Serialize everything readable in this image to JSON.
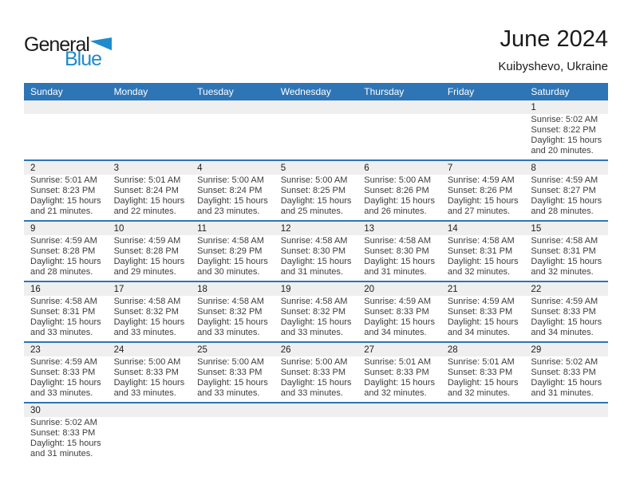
{
  "logo": {
    "part1": "General",
    "part2": "Blue"
  },
  "header": {
    "title": "June 2024",
    "subtitle": "Kuibyshevo, Ukraine"
  },
  "colors": {
    "header_blue": "#2E75B6",
    "separator_blue": "#2E75B6",
    "day_band_gray": "#EFEFEF",
    "logo_blue": "#1E8BCB",
    "detail_text": "#3C3C3C"
  },
  "weekdays": [
    "Sunday",
    "Monday",
    "Tuesday",
    "Wednesday",
    "Thursday",
    "Friday",
    "Saturday"
  ],
  "weeks": [
    [
      {
        "day": ""
      },
      {
        "day": ""
      },
      {
        "day": ""
      },
      {
        "day": ""
      },
      {
        "day": ""
      },
      {
        "day": ""
      },
      {
        "day": "1",
        "sunrise": "Sunrise: 5:02 AM",
        "sunset": "Sunset: 8:22 PM",
        "daylight1": "Daylight: 15 hours",
        "daylight2": "and 20 minutes."
      }
    ],
    [
      {
        "day": "2",
        "sunrise": "Sunrise: 5:01 AM",
        "sunset": "Sunset: 8:23 PM",
        "daylight1": "Daylight: 15 hours",
        "daylight2": "and 21 minutes."
      },
      {
        "day": "3",
        "sunrise": "Sunrise: 5:01 AM",
        "sunset": "Sunset: 8:24 PM",
        "daylight1": "Daylight: 15 hours",
        "daylight2": "and 22 minutes."
      },
      {
        "day": "4",
        "sunrise": "Sunrise: 5:00 AM",
        "sunset": "Sunset: 8:24 PM",
        "daylight1": "Daylight: 15 hours",
        "daylight2": "and 23 minutes."
      },
      {
        "day": "5",
        "sunrise": "Sunrise: 5:00 AM",
        "sunset": "Sunset: 8:25 PM",
        "daylight1": "Daylight: 15 hours",
        "daylight2": "and 25 minutes."
      },
      {
        "day": "6",
        "sunrise": "Sunrise: 5:00 AM",
        "sunset": "Sunset: 8:26 PM",
        "daylight1": "Daylight: 15 hours",
        "daylight2": "and 26 minutes."
      },
      {
        "day": "7",
        "sunrise": "Sunrise: 4:59 AM",
        "sunset": "Sunset: 8:26 PM",
        "daylight1": "Daylight: 15 hours",
        "daylight2": "and 27 minutes."
      },
      {
        "day": "8",
        "sunrise": "Sunrise: 4:59 AM",
        "sunset": "Sunset: 8:27 PM",
        "daylight1": "Daylight: 15 hours",
        "daylight2": "and 28 minutes."
      }
    ],
    [
      {
        "day": "9",
        "sunrise": "Sunrise: 4:59 AM",
        "sunset": "Sunset: 8:28 PM",
        "daylight1": "Daylight: 15 hours",
        "daylight2": "and 28 minutes."
      },
      {
        "day": "10",
        "sunrise": "Sunrise: 4:59 AM",
        "sunset": "Sunset: 8:28 PM",
        "daylight1": "Daylight: 15 hours",
        "daylight2": "and 29 minutes."
      },
      {
        "day": "11",
        "sunrise": "Sunrise: 4:58 AM",
        "sunset": "Sunset: 8:29 PM",
        "daylight1": "Daylight: 15 hours",
        "daylight2": "and 30 minutes."
      },
      {
        "day": "12",
        "sunrise": "Sunrise: 4:58 AM",
        "sunset": "Sunset: 8:30 PM",
        "daylight1": "Daylight: 15 hours",
        "daylight2": "and 31 minutes."
      },
      {
        "day": "13",
        "sunrise": "Sunrise: 4:58 AM",
        "sunset": "Sunset: 8:30 PM",
        "daylight1": "Daylight: 15 hours",
        "daylight2": "and 31 minutes."
      },
      {
        "day": "14",
        "sunrise": "Sunrise: 4:58 AM",
        "sunset": "Sunset: 8:31 PM",
        "daylight1": "Daylight: 15 hours",
        "daylight2": "and 32 minutes."
      },
      {
        "day": "15",
        "sunrise": "Sunrise: 4:58 AM",
        "sunset": "Sunset: 8:31 PM",
        "daylight1": "Daylight: 15 hours",
        "daylight2": "and 32 minutes."
      }
    ],
    [
      {
        "day": "16",
        "sunrise": "Sunrise: 4:58 AM",
        "sunset": "Sunset: 8:31 PM",
        "daylight1": "Daylight: 15 hours",
        "daylight2": "and 33 minutes."
      },
      {
        "day": "17",
        "sunrise": "Sunrise: 4:58 AM",
        "sunset": "Sunset: 8:32 PM",
        "daylight1": "Daylight: 15 hours",
        "daylight2": "and 33 minutes."
      },
      {
        "day": "18",
        "sunrise": "Sunrise: 4:58 AM",
        "sunset": "Sunset: 8:32 PM",
        "daylight1": "Daylight: 15 hours",
        "daylight2": "and 33 minutes."
      },
      {
        "day": "19",
        "sunrise": "Sunrise: 4:58 AM",
        "sunset": "Sunset: 8:32 PM",
        "daylight1": "Daylight: 15 hours",
        "daylight2": "and 33 minutes."
      },
      {
        "day": "20",
        "sunrise": "Sunrise: 4:59 AM",
        "sunset": "Sunset: 8:33 PM",
        "daylight1": "Daylight: 15 hours",
        "daylight2": "and 34 minutes."
      },
      {
        "day": "21",
        "sunrise": "Sunrise: 4:59 AM",
        "sunset": "Sunset: 8:33 PM",
        "daylight1": "Daylight: 15 hours",
        "daylight2": "and 34 minutes."
      },
      {
        "day": "22",
        "sunrise": "Sunrise: 4:59 AM",
        "sunset": "Sunset: 8:33 PM",
        "daylight1": "Daylight: 15 hours",
        "daylight2": "and 34 minutes."
      }
    ],
    [
      {
        "day": "23",
        "sunrise": "Sunrise: 4:59 AM",
        "sunset": "Sunset: 8:33 PM",
        "daylight1": "Daylight: 15 hours",
        "daylight2": "and 33 minutes."
      },
      {
        "day": "24",
        "sunrise": "Sunrise: 5:00 AM",
        "sunset": "Sunset: 8:33 PM",
        "daylight1": "Daylight: 15 hours",
        "daylight2": "and 33 minutes."
      },
      {
        "day": "25",
        "sunrise": "Sunrise: 5:00 AM",
        "sunset": "Sunset: 8:33 PM",
        "daylight1": "Daylight: 15 hours",
        "daylight2": "and 33 minutes."
      },
      {
        "day": "26",
        "sunrise": "Sunrise: 5:00 AM",
        "sunset": "Sunset: 8:33 PM",
        "daylight1": "Daylight: 15 hours",
        "daylight2": "and 33 minutes."
      },
      {
        "day": "27",
        "sunrise": "Sunrise: 5:01 AM",
        "sunset": "Sunset: 8:33 PM",
        "daylight1": "Daylight: 15 hours",
        "daylight2": "and 32 minutes."
      },
      {
        "day": "28",
        "sunrise": "Sunrise: 5:01 AM",
        "sunset": "Sunset: 8:33 PM",
        "daylight1": "Daylight: 15 hours",
        "daylight2": "and 32 minutes."
      },
      {
        "day": "29",
        "sunrise": "Sunrise: 5:02 AM",
        "sunset": "Sunset: 8:33 PM",
        "daylight1": "Daylight: 15 hours",
        "daylight2": "and 31 minutes."
      }
    ],
    [
      {
        "day": "30",
        "sunrise": "Sunrise: 5:02 AM",
        "sunset": "Sunset: 8:33 PM",
        "daylight1": "Daylight: 15 hours",
        "daylight2": "and 31 minutes."
      },
      {
        "day": ""
      },
      {
        "day": ""
      },
      {
        "day": ""
      },
      {
        "day": ""
      },
      {
        "day": ""
      },
      {
        "day": ""
      }
    ]
  ]
}
